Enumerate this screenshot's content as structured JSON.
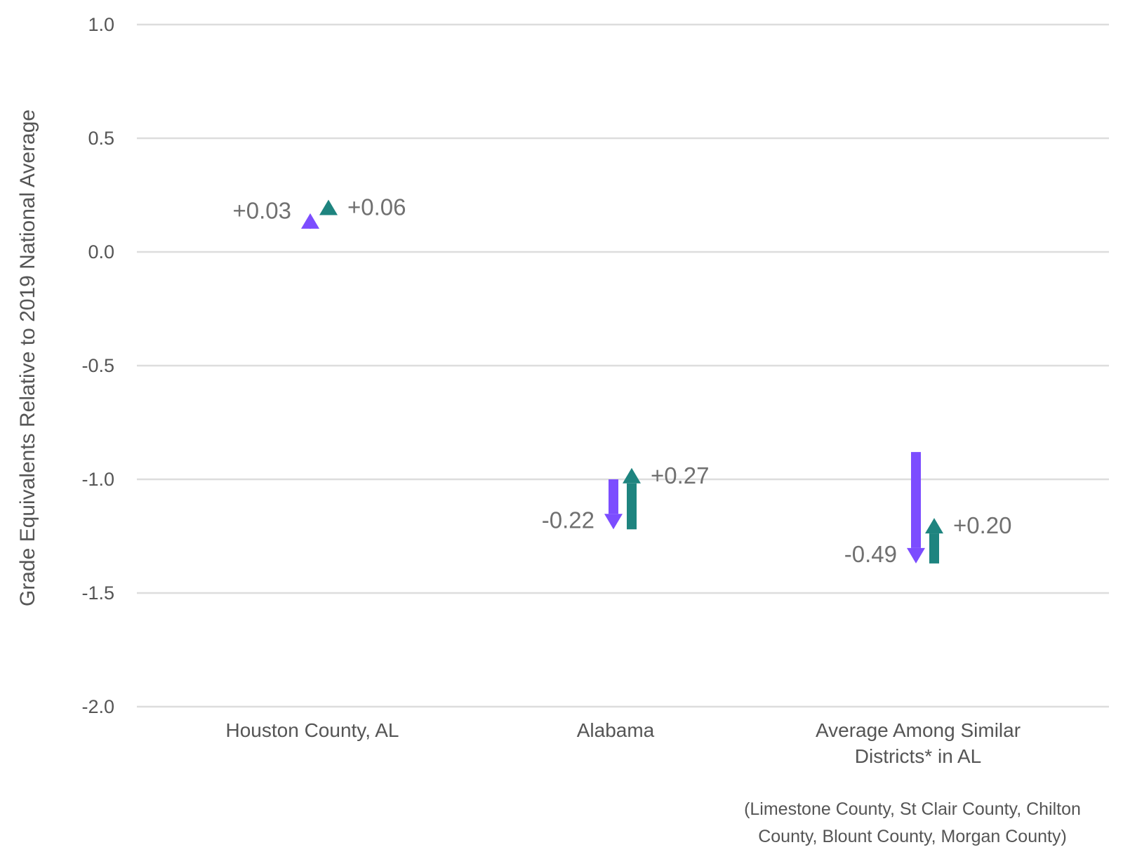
{
  "chart_data": {
    "type": "arrow",
    "title": "",
    "ylabel": "Grade Equivalents Relative to 2019 National Average",
    "xlabel": "",
    "ylim": [
      -2.0,
      1.0
    ],
    "yticks": [
      1.0,
      0.5,
      0.0,
      -0.5,
      -1.0,
      -1.5,
      -2.0
    ],
    "ytick_labels": [
      "1.0",
      "0.5",
      "0.0",
      "-0.5",
      "-1.0",
      "-1.5",
      "-2.0"
    ],
    "grid": true,
    "categories": [
      {
        "label_lines": [
          "Houston County, AL"
        ]
      },
      {
        "label_lines": [
          "Alabama"
        ]
      },
      {
        "label_lines": [
          "Average Among Similar",
          "Districts* in AL"
        ]
      }
    ],
    "series": [
      {
        "color": "#7C4DFF",
        "points": [
          {
            "start": 0.14,
            "end": 0.17,
            "label": "+0.03"
          },
          {
            "start": -1.0,
            "end": -1.22,
            "label": "-0.22"
          },
          {
            "start": -0.88,
            "end": -1.37,
            "label": "-0.49"
          }
        ]
      },
      {
        "color": "#1E847F",
        "points": [
          {
            "start": 0.17,
            "end": 0.23,
            "label": "+0.06"
          },
          {
            "start": -1.22,
            "end": -0.95,
            "label": "+0.27"
          },
          {
            "start": -1.37,
            "end": -1.17,
            "label": "+0.20"
          }
        ]
      }
    ],
    "footnote_lines": [
      "(Limestone County, St Clair County, Chilton",
      "County, Blount County, Morgan County)"
    ]
  }
}
